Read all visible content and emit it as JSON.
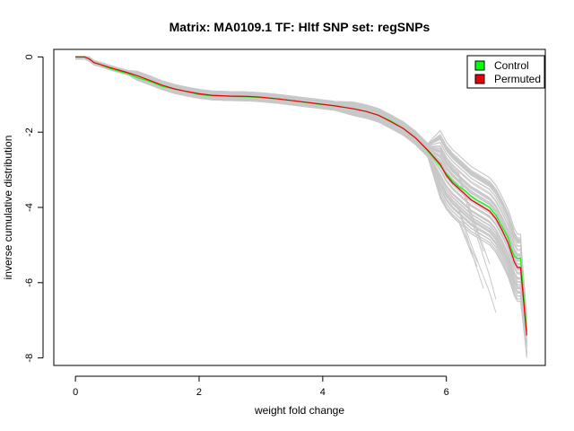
{
  "chart_data": {
    "type": "line",
    "title": "Matrix: MA0109.1 TF: Hltf SNP set: regSNPs",
    "xlabel": "weight fold change",
    "ylabel": "inverse cumulative distribution",
    "xlim": [
      -0.35,
      7.6
    ],
    "ylim": [
      -8.2,
      0.2
    ],
    "xticks": [
      0,
      2,
      4,
      6
    ],
    "yticks": [
      0,
      -2,
      -4,
      -6,
      -8
    ],
    "grid": false,
    "legend_position": "top-right",
    "series": [
      {
        "name": "Control",
        "color": "#00ff00",
        "x": [
          0,
          0.15,
          0.22,
          0.3,
          0.4,
          0.55,
          0.7,
          0.85,
          1.0,
          1.2,
          1.4,
          1.6,
          1.8,
          2.0,
          2.2,
          2.5,
          2.8,
          3.0,
          3.3,
          3.6,
          3.9,
          4.2,
          4.5,
          4.7,
          4.9,
          5.1,
          5.3,
          5.5,
          5.7,
          5.9,
          6.0,
          6.1,
          6.2,
          6.3,
          6.4,
          6.5,
          6.6,
          6.7,
          6.8,
          6.9,
          7.0,
          7.05,
          7.1,
          7.15,
          7.2,
          7.3
        ],
        "y": [
          0,
          0,
          -0.05,
          -0.15,
          -0.2,
          -0.3,
          -0.38,
          -0.45,
          -0.55,
          -0.65,
          -0.78,
          -0.85,
          -0.92,
          -1.0,
          -1.03,
          -1.05,
          -1.06,
          -1.08,
          -1.12,
          -1.18,
          -1.25,
          -1.3,
          -1.38,
          -1.45,
          -1.55,
          -1.7,
          -1.9,
          -2.15,
          -2.5,
          -2.9,
          -3.1,
          -3.3,
          -3.45,
          -3.55,
          -3.7,
          -3.82,
          -3.9,
          -4.0,
          -4.2,
          -4.5,
          -4.8,
          -5.1,
          -5.3,
          -5.35,
          -5.35,
          -7.3
        ]
      },
      {
        "name": "Permuted",
        "color": "#e8000b",
        "x": [
          0,
          0.15,
          0.22,
          0.3,
          0.4,
          0.55,
          0.7,
          0.85,
          1.0,
          1.2,
          1.4,
          1.6,
          1.8,
          2.0,
          2.2,
          2.5,
          2.8,
          3.0,
          3.3,
          3.6,
          3.9,
          4.2,
          4.5,
          4.7,
          4.9,
          5.1,
          5.3,
          5.5,
          5.7,
          5.9,
          6.0,
          6.1,
          6.2,
          6.3,
          6.4,
          6.5,
          6.6,
          6.7,
          6.8,
          6.9,
          7.0,
          7.05,
          7.1,
          7.15,
          7.2,
          7.3
        ],
        "y": [
          0,
          0,
          -0.05,
          -0.15,
          -0.2,
          -0.28,
          -0.35,
          -0.42,
          -0.5,
          -0.62,
          -0.75,
          -0.85,
          -0.92,
          -0.98,
          -1.02,
          -1.04,
          -1.05,
          -1.07,
          -1.12,
          -1.18,
          -1.24,
          -1.3,
          -1.38,
          -1.45,
          -1.55,
          -1.72,
          -1.9,
          -2.15,
          -2.48,
          -2.85,
          -3.15,
          -3.35,
          -3.5,
          -3.65,
          -3.8,
          -3.9,
          -4.0,
          -4.1,
          -4.3,
          -4.6,
          -4.95,
          -5.2,
          -5.45,
          -5.6,
          -5.6,
          -7.4
        ]
      }
    ]
  },
  "legend": {
    "control_label": "Control",
    "permuted_label": "Permuted",
    "control_color": "#00ff00",
    "permuted_color": "#e8000b"
  },
  "background_lines_color": "#c8c8c8"
}
